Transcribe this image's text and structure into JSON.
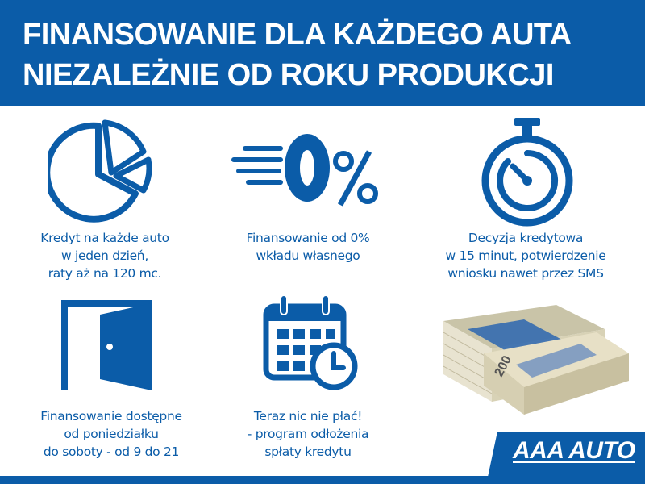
{
  "header": {
    "line1": "FINANSOWANIE DLA KAŻDEGO AUTA",
    "line2": "NIEZALEŻNIE OD ROKU PRODUKCJI"
  },
  "features": [
    {
      "icon": "pie-chart-icon",
      "lines": [
        "Kredyt na każde auto",
        "w jeden dzień,",
        "raty aż na 120 mc."
      ]
    },
    {
      "icon": "zero-percent-icon",
      "lines": [
        "Finansowanie od 0%",
        "wkładu własnego"
      ]
    },
    {
      "icon": "stopwatch-icon",
      "lines": [
        "Decyzja kredytowa",
        "w 15 minut, potwierdzenie",
        "wniosku nawet przez SMS"
      ]
    },
    {
      "icon": "open-door-icon",
      "lines": [
        "Finansowanie dostępne",
        "od poniedziałku",
        "do soboty - od 9 do 21"
      ]
    },
    {
      "icon": "calendar-clock-icon",
      "lines": [
        "Teraz nic nie płać!",
        "- program odłożenia",
        "spłaty kredytu"
      ]
    }
  ],
  "logo": "AAA AUTO",
  "colors": {
    "brand_blue": "#0b5ca8"
  }
}
